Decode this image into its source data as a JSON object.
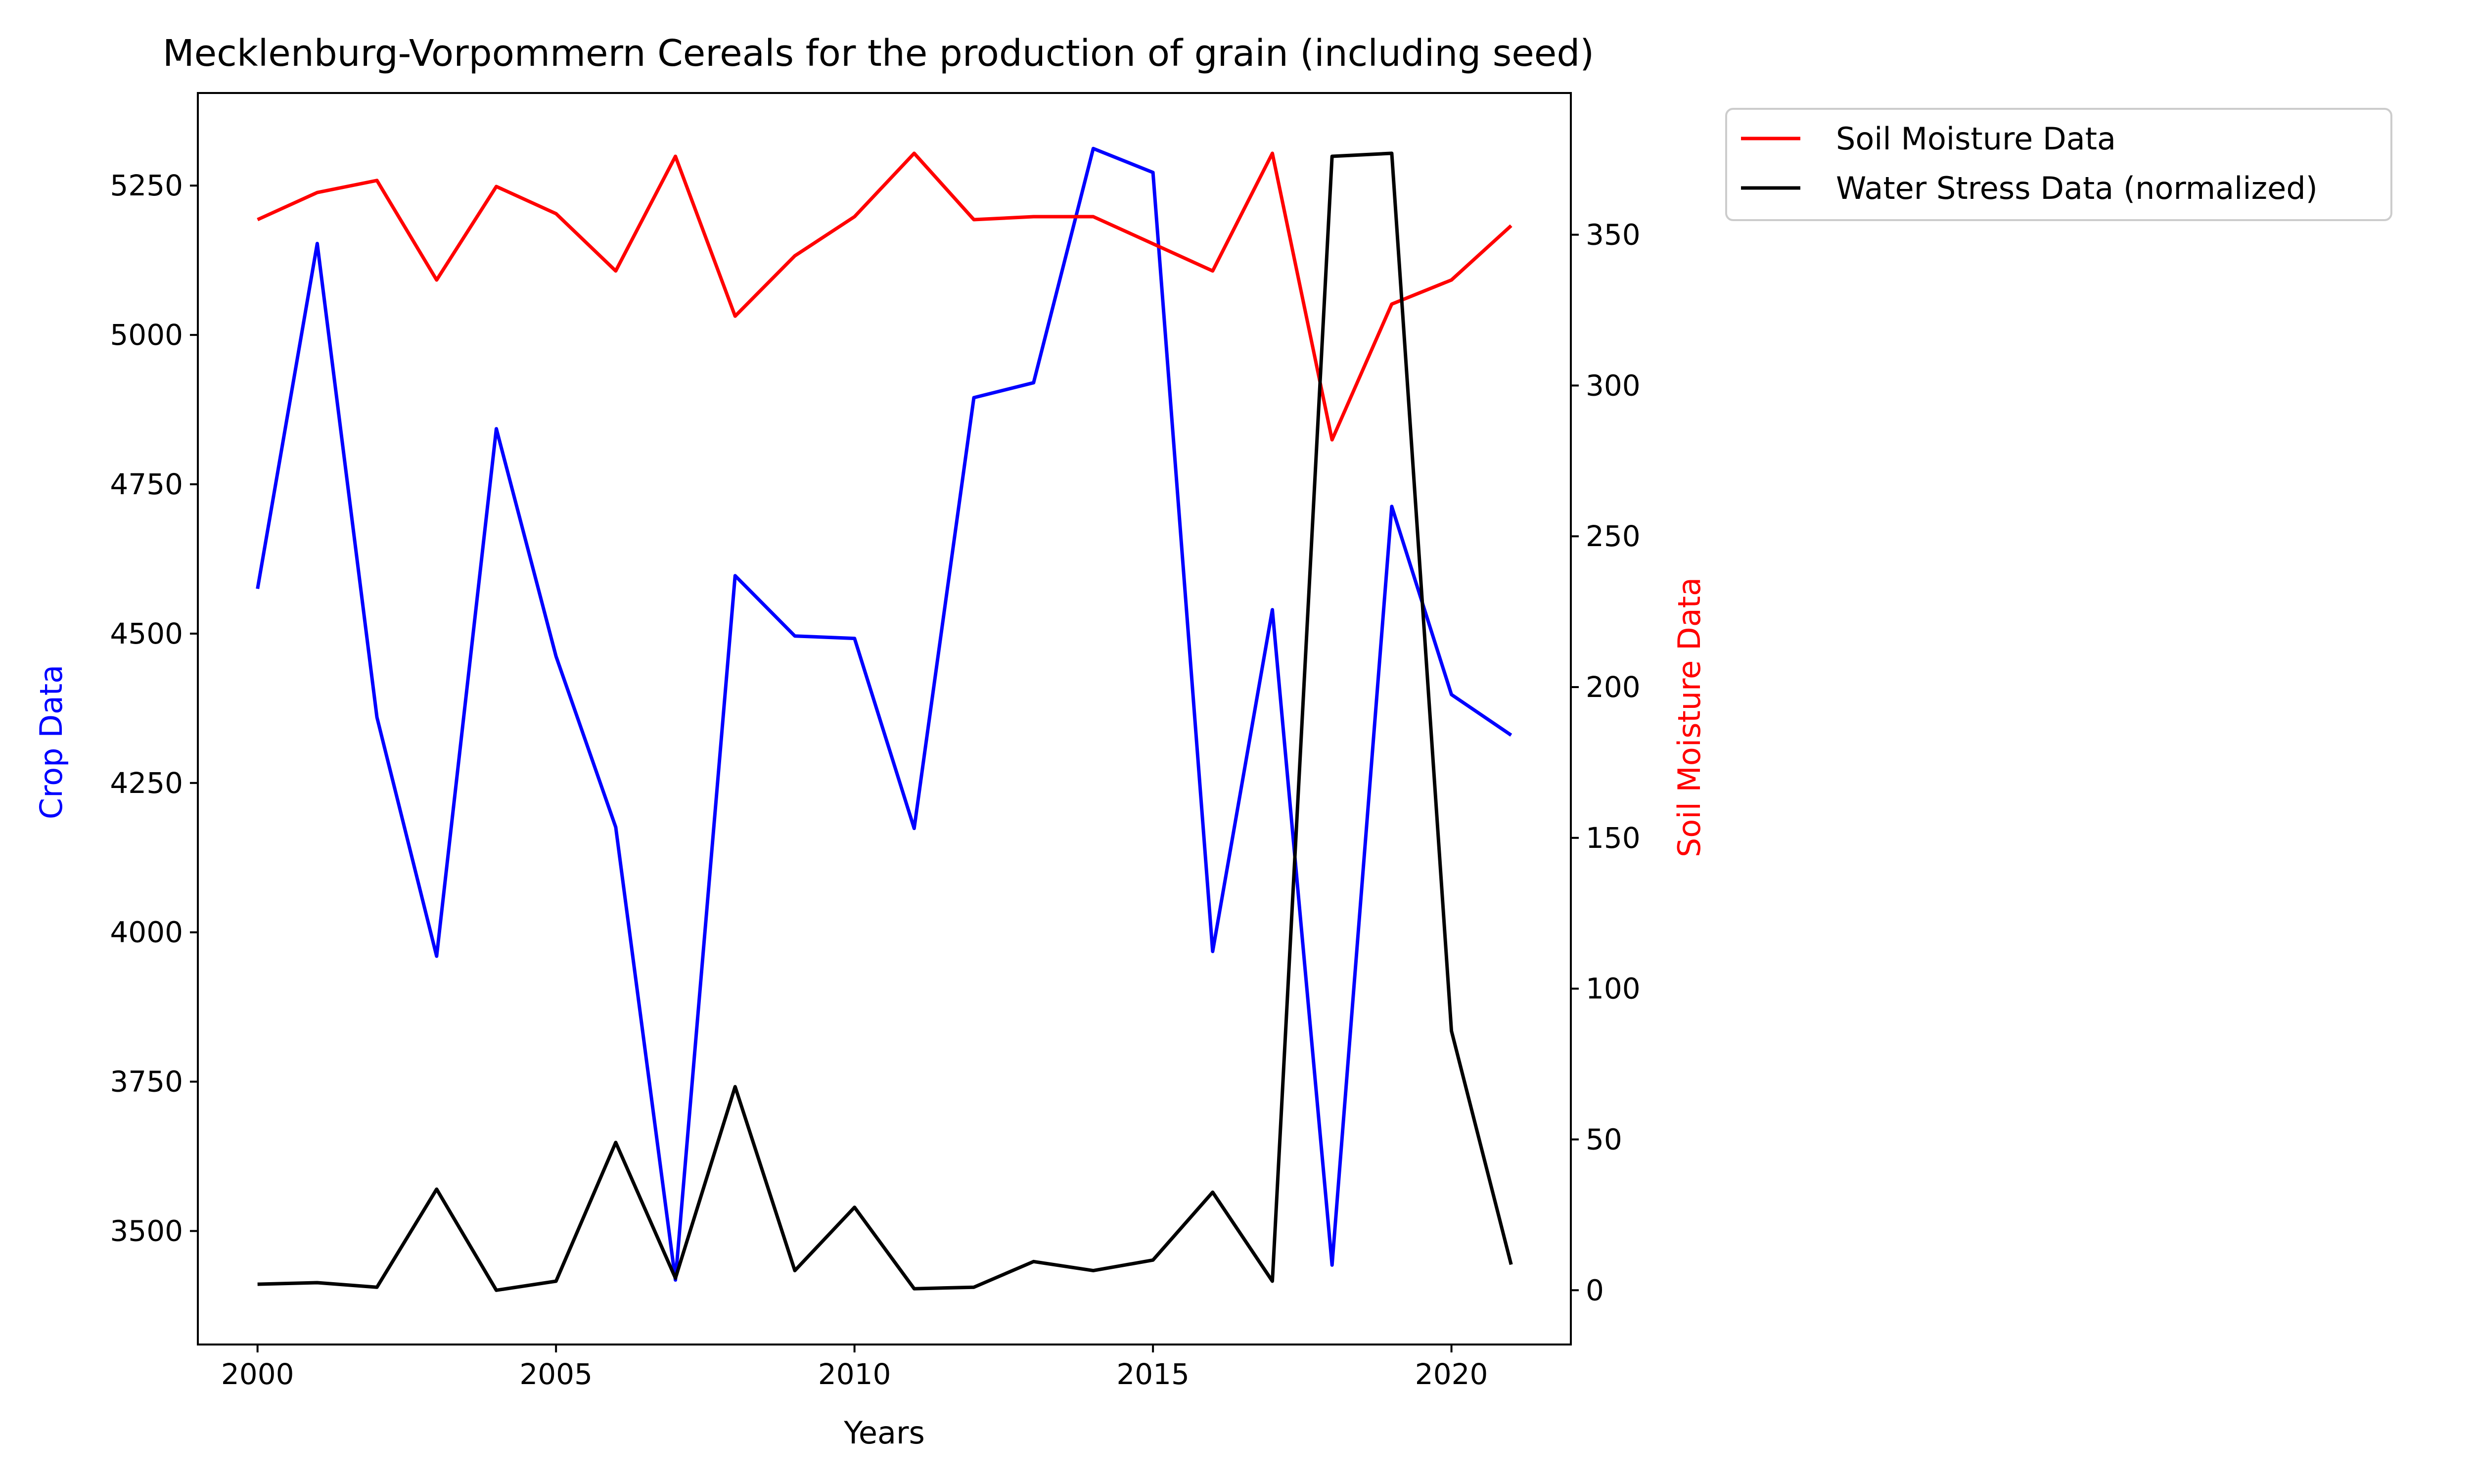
{
  "chart_data": {
    "type": "line",
    "title": "Mecklenburg-Vorpommern Cereals for the production of grain (including seed)",
    "xlabel": "Years",
    "ylabel_left": "Crop Data",
    "ylabel_right": "Soil Moisture Data",
    "x": [
      2000,
      2001,
      2002,
      2003,
      2004,
      2005,
      2006,
      2007,
      2008,
      2009,
      2010,
      2011,
      2012,
      2013,
      2014,
      2015,
      2016,
      2017,
      2018,
      2019,
      2020,
      2021
    ],
    "xlim": [
      1999,
      2022
    ],
    "ylim_left": [
      3310,
      5405
    ],
    "ylim_right": [
      -18,
      397
    ],
    "x_ticks": [
      2000,
      2005,
      2010,
      2015,
      2020
    ],
    "y_ticks_left": [
      3500,
      3750,
      4000,
      4250,
      4500,
      4750,
      5000,
      5250
    ],
    "y_ticks_right": [
      0,
      50,
      100,
      150,
      200,
      250,
      300,
      350
    ],
    "grid": false,
    "legend_position": "outside-top-right",
    "colors": {
      "crop": "#0000ff",
      "soil": "#ff0000",
      "water": "#000000",
      "left_label": "#0000ff",
      "right_label": "#ff0000"
    },
    "series": [
      {
        "key": "crop",
        "axis": "left",
        "values": [
          4575,
          5153,
          4360,
          3960,
          4843,
          4462,
          4176,
          3418,
          4597,
          4496,
          4492,
          4174,
          4895,
          4920,
          5312,
          5272,
          3968,
          4540,
          3443,
          4713,
          4398,
          4330
        ]
      },
      {
        "key": "soil",
        "name": "Soil Moisture Data",
        "axis": "right",
        "values": [
          355,
          364,
          368,
          335,
          366,
          357,
          338,
          376,
          323,
          343,
          356,
          377,
          355,
          356,
          356,
          347,
          338,
          377,
          282,
          327,
          335,
          353
        ]
      },
      {
        "key": "water",
        "name": "Water Stress Data (normalized)",
        "axis": "right",
        "values": [
          2,
          2.5,
          1,
          33.5,
          0,
          3,
          49,
          4,
          67.5,
          6.5,
          27.5,
          0.5,
          1,
          9.5,
          6.5,
          10,
          32.5,
          3,
          376,
          377,
          86,
          8.5
        ]
      }
    ]
  }
}
